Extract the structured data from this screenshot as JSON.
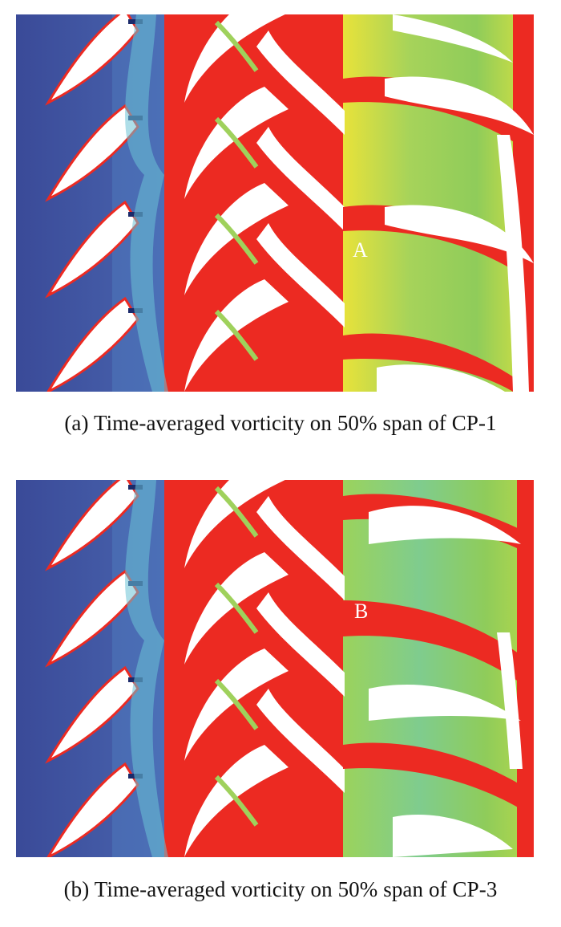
{
  "figure": {
    "panels": [
      {
        "id": "a",
        "caption": "(a) Time-averaged vorticity on 50% span of CP-1",
        "marker": "A"
      },
      {
        "id": "b",
        "caption": "(b) Time-averaged vorticity on 50% span of CP-3",
        "marker": "B"
      }
    ],
    "colors": {
      "inlet_blue": "#3d4f9c",
      "high_vorticity_red": "#ec2a22",
      "mid_green": "#8fcc5a",
      "mid_yellow": "#e8e23a",
      "low_cyan": "#6cc3d6",
      "blade_white": "#ffffff"
    }
  }
}
